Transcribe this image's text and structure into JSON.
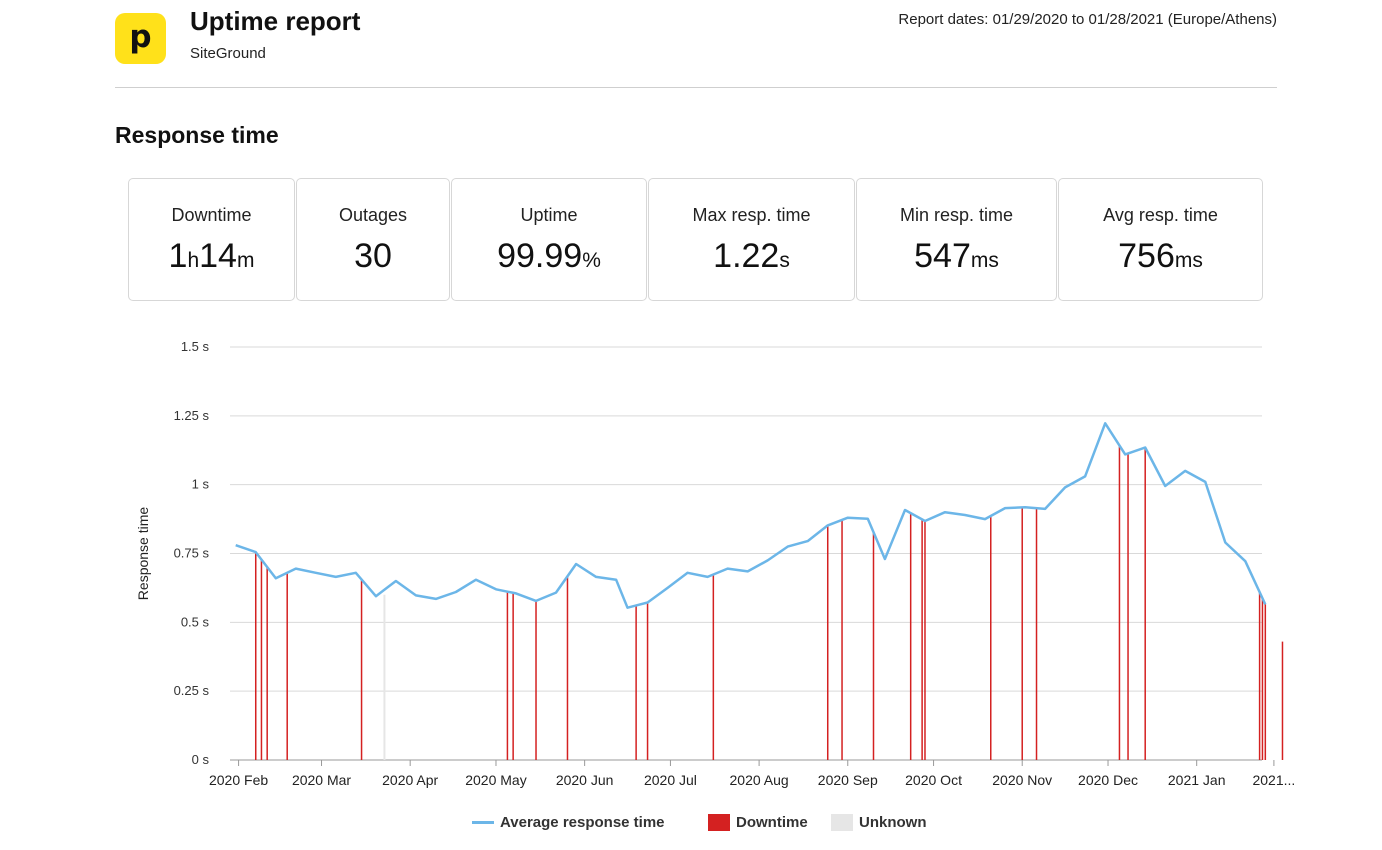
{
  "header": {
    "logo_letter": "p",
    "title": "Uptime report",
    "subtitle": "SiteGround",
    "report_dates": "Report dates: 01/29/2020 to 01/28/2021 (Europe/Athens)"
  },
  "section_title": "Response time",
  "stats": [
    {
      "label": "Downtime",
      "parts": [
        {
          "t": "1",
          "u": false
        },
        {
          "t": "h",
          "u": true
        },
        {
          "t": "14",
          "u": false
        },
        {
          "t": "m",
          "u": true
        }
      ]
    },
    {
      "label": "Outages",
      "parts": [
        {
          "t": "30",
          "u": false
        }
      ]
    },
    {
      "label": "Uptime",
      "parts": [
        {
          "t": "99.99",
          "u": false
        },
        {
          "t": "%",
          "u": true
        }
      ]
    },
    {
      "label": "Max resp. time",
      "parts": [
        {
          "t": "1.22",
          "u": false
        },
        {
          "t": "s",
          "u": true
        }
      ]
    },
    {
      "label": "Min resp. time",
      "parts": [
        {
          "t": "547",
          "u": false
        },
        {
          "t": "ms",
          "u": true
        }
      ]
    },
    {
      "label": "Avg resp. time",
      "parts": [
        {
          "t": "756",
          "u": false
        },
        {
          "t": "ms",
          "u": true
        }
      ]
    }
  ],
  "colors": {
    "line": "#6cb6e8",
    "downtime": "#d42121",
    "unknown": "#e6e6e6",
    "grid": "#d9d9d9",
    "logo": "#ffe11a"
  },
  "chart_data": {
    "type": "line",
    "ylabel": "Response time",
    "ylim": [
      0,
      1.5
    ],
    "y_ticks": [
      {
        "v": 0,
        "label": "0 s"
      },
      {
        "v": 0.25,
        "label": "0.25 s"
      },
      {
        "v": 0.5,
        "label": "0.5 s"
      },
      {
        "v": 0.75,
        "label": "0.75 s"
      },
      {
        "v": 1,
        "label": "1 s"
      },
      {
        "v": 1.25,
        "label": "1.25 s"
      },
      {
        "v": 1.5,
        "label": "1.5 s"
      }
    ],
    "xlim": [
      "2020-01-29",
      "2021-01-28"
    ],
    "x_ticks": [
      {
        "date": "2020-02-01",
        "label": "2020 Feb"
      },
      {
        "date": "2020-03-01",
        "label": "2020 Mar"
      },
      {
        "date": "2020-04-01",
        "label": "2020 Apr"
      },
      {
        "date": "2020-05-01",
        "label": "2020 May"
      },
      {
        "date": "2020-06-01",
        "label": "2020 Jun"
      },
      {
        "date": "2020-07-01",
        "label": "2020 Jul"
      },
      {
        "date": "2020-08-01",
        "label": "2020 Aug"
      },
      {
        "date": "2020-09-01",
        "label": "2020 Sep"
      },
      {
        "date": "2020-10-01",
        "label": "2020 Oct"
      },
      {
        "date": "2020-11-01",
        "label": "2020 Nov"
      },
      {
        "date": "2020-12-01",
        "label": "2020 Dec"
      },
      {
        "date": "2021-01-01",
        "label": "2021 Jan"
      },
      {
        "date": "2021-01-28",
        "label": "2021..."
      }
    ],
    "series": [
      {
        "name": "Average response time",
        "points": [
          [
            "2020-01-31",
            0.78
          ],
          [
            "2020-02-07",
            0.755
          ],
          [
            "2020-02-14",
            0.66
          ],
          [
            "2020-02-21",
            0.695
          ],
          [
            "2020-02-28",
            0.68
          ],
          [
            "2020-03-06",
            0.665
          ],
          [
            "2020-03-13",
            0.68
          ],
          [
            "2020-03-20",
            0.595
          ],
          [
            "2020-03-27",
            0.65
          ],
          [
            "2020-04-03",
            0.598
          ],
          [
            "2020-04-10",
            0.585
          ],
          [
            "2020-04-17",
            0.61
          ],
          [
            "2020-04-24",
            0.655
          ],
          [
            "2020-05-01",
            0.62
          ],
          [
            "2020-05-08",
            0.605
          ],
          [
            "2020-05-15",
            0.578
          ],
          [
            "2020-05-22",
            0.608
          ],
          [
            "2020-05-29",
            0.712
          ],
          [
            "2020-06-05",
            0.665
          ],
          [
            "2020-06-12",
            0.655
          ],
          [
            "2020-06-16",
            0.553
          ],
          [
            "2020-06-23",
            0.572
          ],
          [
            "2020-06-30",
            0.625
          ],
          [
            "2020-07-07",
            0.68
          ],
          [
            "2020-07-14",
            0.665
          ],
          [
            "2020-07-21",
            0.695
          ],
          [
            "2020-07-28",
            0.685
          ],
          [
            "2020-08-04",
            0.725
          ],
          [
            "2020-08-11",
            0.775
          ],
          [
            "2020-08-18",
            0.795
          ],
          [
            "2020-08-25",
            0.852
          ],
          [
            "2020-09-01",
            0.88
          ],
          [
            "2020-09-08",
            0.876
          ],
          [
            "2020-09-14",
            0.73
          ],
          [
            "2020-09-21",
            0.908
          ],
          [
            "2020-09-28",
            0.868
          ],
          [
            "2020-10-05",
            0.9
          ],
          [
            "2020-10-12",
            0.89
          ],
          [
            "2020-10-19",
            0.875
          ],
          [
            "2020-10-26",
            0.915
          ],
          [
            "2020-11-02",
            0.918
          ],
          [
            "2020-11-09",
            0.912
          ],
          [
            "2020-11-16",
            0.99
          ],
          [
            "2020-11-23",
            1.03
          ],
          [
            "2020-11-30",
            1.223
          ],
          [
            "2020-12-07",
            1.11
          ],
          [
            "2020-12-14",
            1.135
          ],
          [
            "2020-12-21",
            0.995
          ],
          [
            "2020-12-28",
            1.05
          ],
          [
            "2021-01-04",
            1.01
          ],
          [
            "2021-01-11",
            0.79
          ],
          [
            "2021-01-18",
            0.722
          ],
          [
            "2021-01-25",
            0.565
          ]
        ]
      }
    ],
    "downtime": [
      "2020-02-07",
      "2020-02-09",
      "2020-02-11",
      "2020-02-18",
      "2020-03-15",
      "2020-05-05",
      "2020-05-07",
      "2020-05-15",
      "2020-05-26",
      "2020-06-19",
      "2020-06-23",
      "2020-07-16",
      "2020-08-25",
      "2020-08-30",
      "2020-09-10",
      "2020-09-23",
      "2020-09-27",
      "2020-09-28",
      "2020-10-21",
      "2020-11-01",
      "2020-11-06",
      "2020-12-05",
      "2020-12-08",
      "2020-12-14",
      "2021-01-23",
      "2021-01-24",
      "2021-01-25",
      "2021-01-31"
    ],
    "unknown": [
      "2020-03-23"
    ],
    "legend": [
      {
        "label": "Average response time",
        "kind": "line"
      },
      {
        "label": "Downtime",
        "kind": "box",
        "color_key": "downtime"
      },
      {
        "label": "Unknown",
        "kind": "box",
        "color_key": "unknown"
      }
    ],
    "grid": true,
    "legend_position": "bottom"
  }
}
